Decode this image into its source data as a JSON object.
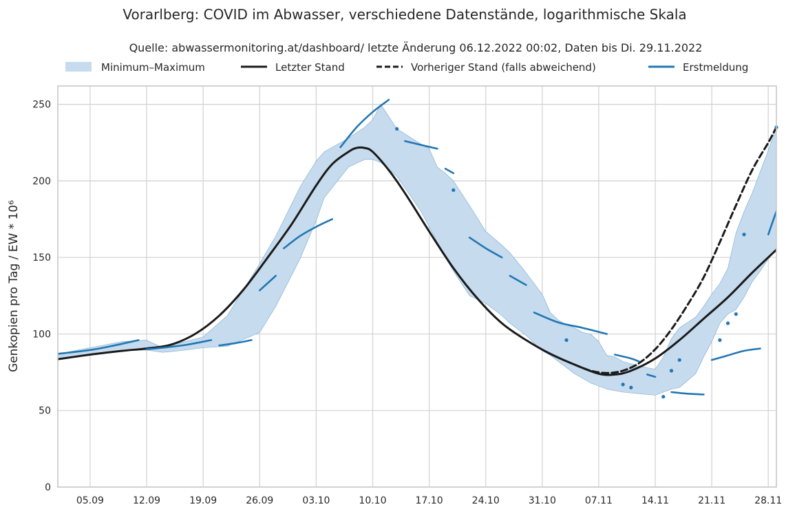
{
  "chart_data": {
    "type": "line",
    "title": "Vorarlberg: COVID im Abwasser, verschiedene Datenstände, logarithmische Skala",
    "subtitle": "Quelle: abwassermonitoring.at/dashboard/ letzte Änderung 06.12.2022 00:02, Daten bis Di. 29.11.2022",
    "ylabel": "Genkopien pro Tag / EW * 10⁶",
    "xlabel": "",
    "ylim": [
      0,
      262
    ],
    "xlim": [
      "2022-09-01",
      "2022-11-29"
    ],
    "yticks": [
      0,
      50,
      100,
      150,
      200,
      250
    ],
    "xticks": [
      {
        "date": "2022-09-05",
        "label": "05.09"
      },
      {
        "date": "2022-09-12",
        "label": "12.09"
      },
      {
        "date": "2022-09-19",
        "label": "19.09"
      },
      {
        "date": "2022-09-26",
        "label": "26.09"
      },
      {
        "date": "2022-10-03",
        "label": "03.10"
      },
      {
        "date": "2022-10-10",
        "label": "10.10"
      },
      {
        "date": "2022-10-17",
        "label": "17.10"
      },
      {
        "date": "2022-10-24",
        "label": "24.10"
      },
      {
        "date": "2022-10-31",
        "label": "31.10"
      },
      {
        "date": "2022-11-07",
        "label": "07.11"
      },
      {
        "date": "2022-11-14",
        "label": "14.11"
      },
      {
        "date": "2022-11-21",
        "label": "21.11"
      },
      {
        "date": "2022-11-28",
        "label": "28.11"
      }
    ],
    "grid": true,
    "legend_position": "top",
    "band": {
      "name": "Minimum–Maximum",
      "color": "#c6dbed",
      "x": [
        "2022-09-01",
        "2022-09-05",
        "2022-09-09",
        "2022-09-12",
        "2022-09-14",
        "2022-09-16",
        "2022-09-19",
        "2022-09-22",
        "2022-09-26",
        "2022-09-28",
        "2022-10-01",
        "2022-10-03",
        "2022-10-04",
        "2022-10-07",
        "2022-10-09",
        "2022-10-10",
        "2022-10-11",
        "2022-10-13",
        "2022-10-16",
        "2022-10-17",
        "2022-10-18",
        "2022-10-19",
        "2022-10-20",
        "2022-10-22",
        "2022-10-24",
        "2022-10-26",
        "2022-10-27",
        "2022-10-29",
        "2022-10-31",
        "2022-11-01",
        "2022-11-02",
        "2022-11-03",
        "2022-11-04",
        "2022-11-05",
        "2022-11-06",
        "2022-11-07",
        "2022-11-08",
        "2022-11-09",
        "2022-11-10",
        "2022-11-12",
        "2022-11-14",
        "2022-11-15",
        "2022-11-16",
        "2022-11-17",
        "2022-11-19",
        "2022-11-20",
        "2022-11-21",
        "2022-11-22",
        "2022-11-23",
        "2022-11-24",
        "2022-11-25",
        "2022-11-26",
        "2022-11-27",
        "2022-11-28",
        "2022-11-29"
      ],
      "lower": [
        83.5,
        87,
        89,
        89.5,
        88,
        89,
        91,
        92,
        101,
        118,
        149,
        174,
        189,
        209,
        214,
        214,
        212,
        203,
        180,
        170,
        160,
        150,
        141,
        125,
        120,
        112,
        107,
        99,
        89,
        86,
        82,
        78,
        74,
        71,
        68,
        66,
        64,
        63,
        62,
        61,
        60,
        62,
        64,
        65,
        74,
        85,
        95,
        107,
        113,
        116,
        124,
        134,
        141,
        149,
        156
      ],
      "upper": [
        87,
        91,
        95,
        96,
        91,
        94,
        98,
        112,
        146,
        164,
        196,
        213,
        219,
        228,
        235,
        240,
        250,
        234,
        224,
        221,
        209,
        205,
        200,
        184,
        167,
        158,
        153,
        140,
        126,
        114,
        109,
        106,
        104,
        101,
        100,
        95,
        86,
        85,
        82,
        79,
        77,
        85,
        97,
        104,
        111,
        118,
        126,
        133,
        143,
        166,
        180,
        192,
        206,
        220,
        235
      ]
    },
    "series": [
      {
        "name": "Letzter Stand",
        "color": "#1a1a1a",
        "dash": false,
        "x": [
          "2022-09-01",
          "2022-09-05",
          "2022-09-09",
          "2022-09-12",
          "2022-09-15",
          "2022-09-18",
          "2022-09-21",
          "2022-09-24",
          "2022-09-27",
          "2022-09-30",
          "2022-10-03",
          "2022-10-05",
          "2022-10-07",
          "2022-10-08",
          "2022-10-09",
          "2022-10-10",
          "2022-10-12",
          "2022-10-14",
          "2022-10-17",
          "2022-10-20",
          "2022-10-23",
          "2022-10-26",
          "2022-10-29",
          "2022-11-01",
          "2022-11-04",
          "2022-11-07",
          "2022-11-09",
          "2022-11-11",
          "2022-11-14",
          "2022-11-17",
          "2022-11-20",
          "2022-11-23",
          "2022-11-26",
          "2022-11-29"
        ],
        "values": [
          83.5,
          86.5,
          89,
          90.5,
          93,
          100,
          112,
          129,
          150,
          172,
          197,
          211,
          219,
          221.5,
          221.5,
          219,
          207,
          192,
          167,
          143,
          123,
          107,
          96,
          87,
          80,
          74,
          73.5,
          76,
          84,
          96,
          110,
          124,
          140,
          155
        ]
      },
      {
        "name": "Vorheriger Stand (falls abweichend)",
        "color": "#1a1a1a",
        "dash": true,
        "x": [
          "2022-11-04",
          "2022-11-06",
          "2022-11-08",
          "2022-11-10",
          "2022-11-12",
          "2022-11-14",
          "2022-11-16",
          "2022-11-18",
          "2022-11-20",
          "2022-11-22",
          "2022-11-24",
          "2022-11-26",
          "2022-11-28",
          "2022-11-29"
        ],
        "values": [
          80,
          76,
          74.5,
          76,
          81,
          90,
          103,
          119,
          137,
          160,
          184,
          207,
          225,
          235
        ]
      },
      {
        "name": "Erstmeldung",
        "color": "#2176b3",
        "dash": false,
        "segments": [
          {
            "x": [
              "2022-09-01",
              "2022-09-05",
              "2022-09-08",
              "2022-09-11"
            ],
            "values": [
              87,
              89.5,
              92.5,
              96
            ]
          },
          {
            "x": [
              "2022-09-12",
              "2022-09-14",
              "2022-09-17",
              "2022-09-20"
            ],
            "values": [
              90,
              91,
              93,
              96
            ]
          },
          {
            "x": [
              "2022-09-21",
              "2022-09-23",
              "2022-09-25"
            ],
            "values": [
              92.5,
              94,
              96
            ]
          },
          {
            "x": [
              "2022-09-26",
              "2022-09-28"
            ],
            "values": [
              128.5,
              138
            ]
          },
          {
            "x": [
              "2022-09-29",
              "2022-10-01",
              "2022-10-03",
              "2022-10-05"
            ],
            "values": [
              156,
              164,
              170,
              175
            ]
          },
          {
            "x": [
              "2022-10-06",
              "2022-10-08",
              "2022-10-10",
              "2022-10-12"
            ],
            "values": [
              222,
              235,
              245,
              253
            ]
          },
          {
            "x": [
              "2022-10-14",
              "2022-10-16",
              "2022-10-18"
            ],
            "values": [
              226,
              223.5,
              221
            ]
          },
          {
            "x": [
              "2022-10-19",
              "2022-10-20"
            ],
            "values": [
              208,
              205
            ]
          },
          {
            "x": [
              "2022-10-22",
              "2022-10-24",
              "2022-10-26"
            ],
            "values": [
              163,
              156,
              150
            ]
          },
          {
            "x": [
              "2022-10-27",
              "2022-10-29"
            ],
            "values": [
              138,
              132
            ]
          },
          {
            "x": [
              "2022-10-30",
              "2022-11-02",
              "2022-11-05",
              "2022-11-08"
            ],
            "values": [
              114,
              107.5,
              104,
              100
            ]
          },
          {
            "x": [
              "2022-11-09",
              "2022-11-11",
              "2022-11-12"
            ],
            "values": [
              86.5,
              84,
              82
            ]
          },
          {
            "x": [
              "2022-11-13",
              "2022-11-14"
            ],
            "values": [
              73.5,
              72
            ]
          },
          {
            "x": [
              "2022-11-16",
              "2022-11-18",
              "2022-11-20"
            ],
            "values": [
              62,
              61,
              60.5
            ]
          },
          {
            "x": [
              "2022-11-21",
              "2022-11-23",
              "2022-11-25",
              "2022-11-27"
            ],
            "values": [
              83,
              86,
              89,
              90.5
            ]
          },
          {
            "x": [
              "2022-11-28",
              "2022-11-29",
              "2022-11-30",
              "2022-12-01"
            ],
            "values": [
              165,
              180,
              193,
              207
            ]
          }
        ],
        "points": {
          "x": [
            "2022-10-13",
            "2022-10-20",
            "2022-11-03",
            "2022-11-10",
            "2022-11-11",
            "2022-11-15",
            "2022-11-16",
            "2022-11-17",
            "2022-11-22",
            "2022-11-23",
            "2022-11-24",
            "2022-11-25",
            "2022-11-29"
          ],
          "values": [
            234,
            194,
            96,
            67,
            65,
            59,
            76,
            83,
            96,
            107,
            113,
            165,
            235
          ]
        }
      }
    ]
  }
}
